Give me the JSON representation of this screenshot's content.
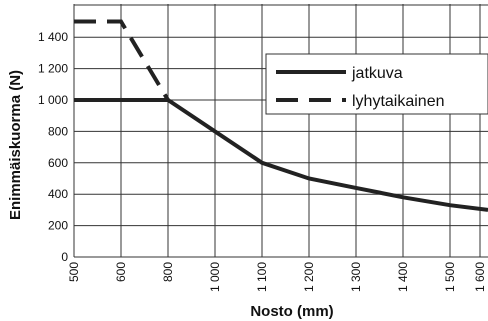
{
  "chart_data": {
    "type": "line",
    "xlabel": "Nosto (mm)",
    "ylabel": "Enimmäiskuorma (N)",
    "xlim": [
      500,
      1640
    ],
    "ylim": [
      0,
      1500
    ],
    "x_ticks": [
      {
        "value": 500,
        "label": "500"
      },
      {
        "value": 600,
        "label": "600"
      },
      {
        "value": 800,
        "label": "800"
      },
      {
        "value": 1000,
        "label": "1 000"
      },
      {
        "value": 1100,
        "label": "1 100"
      },
      {
        "value": 1200,
        "label": "1 200"
      },
      {
        "value": 1300,
        "label": "1 300"
      },
      {
        "value": 1400,
        "label": "1 400"
      },
      {
        "value": 1500,
        "label": "1 500"
      },
      {
        "value": 1600,
        "label": "1 600"
      }
    ],
    "y_ticks": [
      {
        "value": 0,
        "label": "0"
      },
      {
        "value": 200,
        "label": "200"
      },
      {
        "value": 400,
        "label": "400"
      },
      {
        "value": 600,
        "label": "600"
      },
      {
        "value": 800,
        "label": "800"
      },
      {
        "value": 1000,
        "label": "1 000"
      },
      {
        "value": 1200,
        "label": "1 200"
      },
      {
        "value": 1400,
        "label": "1 400"
      }
    ],
    "grid": true,
    "legend_position": "top-right",
    "series": [
      {
        "name": "jatkuva",
        "style": "solid",
        "points": [
          [
            500,
            1000
          ],
          [
            800,
            1000
          ],
          [
            1000,
            800
          ],
          [
            1100,
            600
          ],
          [
            1200,
            500
          ],
          [
            1300,
            440
          ],
          [
            1400,
            380
          ],
          [
            1500,
            330
          ],
          [
            1640,
            300
          ]
        ]
      },
      {
        "name": "lyhytaikainen",
        "style": "dashed",
        "points": [
          [
            500,
            1500
          ],
          [
            600,
            1500
          ],
          [
            800,
            1000
          ]
        ]
      }
    ],
    "colors": {
      "line": "#222222",
      "grid": "#333333",
      "background": "#ffffff"
    }
  }
}
